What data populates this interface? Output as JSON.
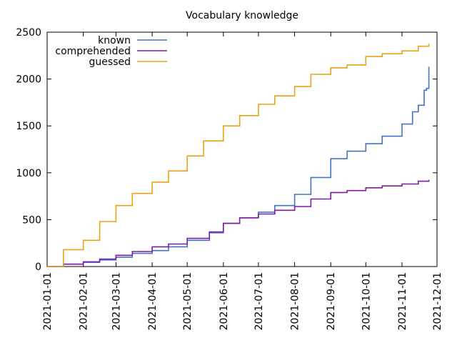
{
  "chart_data": {
    "type": "line",
    "title": "Vocabulary knowledge",
    "xlabel": "",
    "ylabel": "",
    "ylim": [
      0,
      2500
    ],
    "yticks": [
      0,
      500,
      1000,
      1500,
      2000,
      2500
    ],
    "xlim": [
      "2021-01-01",
      "2021-12-01"
    ],
    "xticks": [
      "2021-01-01",
      "2021-02-01",
      "2021-03-01",
      "2021-04-01",
      "2021-05-01",
      "2021-06-01",
      "2021-07-01",
      "2021-08-01",
      "2021-09-01",
      "2021-10-01",
      "2021-11-01",
      "2021-12-01"
    ],
    "grid": false,
    "legend_position": "top-left",
    "series": [
      {
        "name": "known",
        "color": "#4472c4",
        "points": [
          [
            "2021-01-01",
            0
          ],
          [
            "2021-01-15",
            25
          ],
          [
            "2021-02-01",
            45
          ],
          [
            "2021-02-15",
            70
          ],
          [
            "2021-03-01",
            100
          ],
          [
            "2021-03-15",
            140
          ],
          [
            "2021-04-01",
            170
          ],
          [
            "2021-04-15",
            210
          ],
          [
            "2021-05-01",
            280
          ],
          [
            "2021-05-20",
            360
          ],
          [
            "2021-06-01",
            460
          ],
          [
            "2021-06-15",
            520
          ],
          [
            "2021-07-01",
            580
          ],
          [
            "2021-07-15",
            650
          ],
          [
            "2021-08-01",
            770
          ],
          [
            "2021-08-15",
            950
          ],
          [
            "2021-09-01",
            1150
          ],
          [
            "2021-09-15",
            1230
          ],
          [
            "2021-10-01",
            1310
          ],
          [
            "2021-10-15",
            1390
          ],
          [
            "2021-11-01",
            1520
          ],
          [
            "2021-11-10",
            1650
          ],
          [
            "2021-11-15",
            1720
          ],
          [
            "2021-11-20",
            1880
          ],
          [
            "2021-11-22",
            1900
          ],
          [
            "2021-11-24",
            2130
          ]
        ]
      },
      {
        "name": "comprehended",
        "color": "#7f1aa5",
        "points": [
          [
            "2021-01-01",
            0
          ],
          [
            "2021-01-15",
            25
          ],
          [
            "2021-02-01",
            50
          ],
          [
            "2021-02-15",
            80
          ],
          [
            "2021-03-01",
            120
          ],
          [
            "2021-03-15",
            160
          ],
          [
            "2021-04-01",
            210
          ],
          [
            "2021-04-15",
            240
          ],
          [
            "2021-05-01",
            300
          ],
          [
            "2021-05-20",
            370
          ],
          [
            "2021-06-01",
            460
          ],
          [
            "2021-06-15",
            520
          ],
          [
            "2021-07-01",
            560
          ],
          [
            "2021-07-15",
            600
          ],
          [
            "2021-08-01",
            640
          ],
          [
            "2021-08-15",
            720
          ],
          [
            "2021-09-01",
            790
          ],
          [
            "2021-09-15",
            810
          ],
          [
            "2021-10-01",
            840
          ],
          [
            "2021-10-15",
            860
          ],
          [
            "2021-11-01",
            880
          ],
          [
            "2021-11-15",
            910
          ],
          [
            "2021-11-24",
            925
          ]
        ]
      },
      {
        "name": "guessed",
        "color": "#e8a317",
        "points": [
          [
            "2021-01-01",
            0
          ],
          [
            "2021-01-15",
            180
          ],
          [
            "2021-02-01",
            280
          ],
          [
            "2021-02-15",
            480
          ],
          [
            "2021-03-01",
            650
          ],
          [
            "2021-03-15",
            780
          ],
          [
            "2021-04-01",
            900
          ],
          [
            "2021-04-15",
            1020
          ],
          [
            "2021-05-01",
            1180
          ],
          [
            "2021-05-15",
            1340
          ],
          [
            "2021-06-01",
            1500
          ],
          [
            "2021-06-15",
            1610
          ],
          [
            "2021-07-01",
            1730
          ],
          [
            "2021-07-15",
            1820
          ],
          [
            "2021-08-01",
            1920
          ],
          [
            "2021-08-15",
            2050
          ],
          [
            "2021-09-01",
            2120
          ],
          [
            "2021-09-15",
            2150
          ],
          [
            "2021-10-01",
            2240
          ],
          [
            "2021-10-15",
            2270
          ],
          [
            "2021-11-01",
            2300
          ],
          [
            "2021-11-15",
            2350
          ],
          [
            "2021-11-24",
            2375
          ]
        ]
      }
    ]
  }
}
